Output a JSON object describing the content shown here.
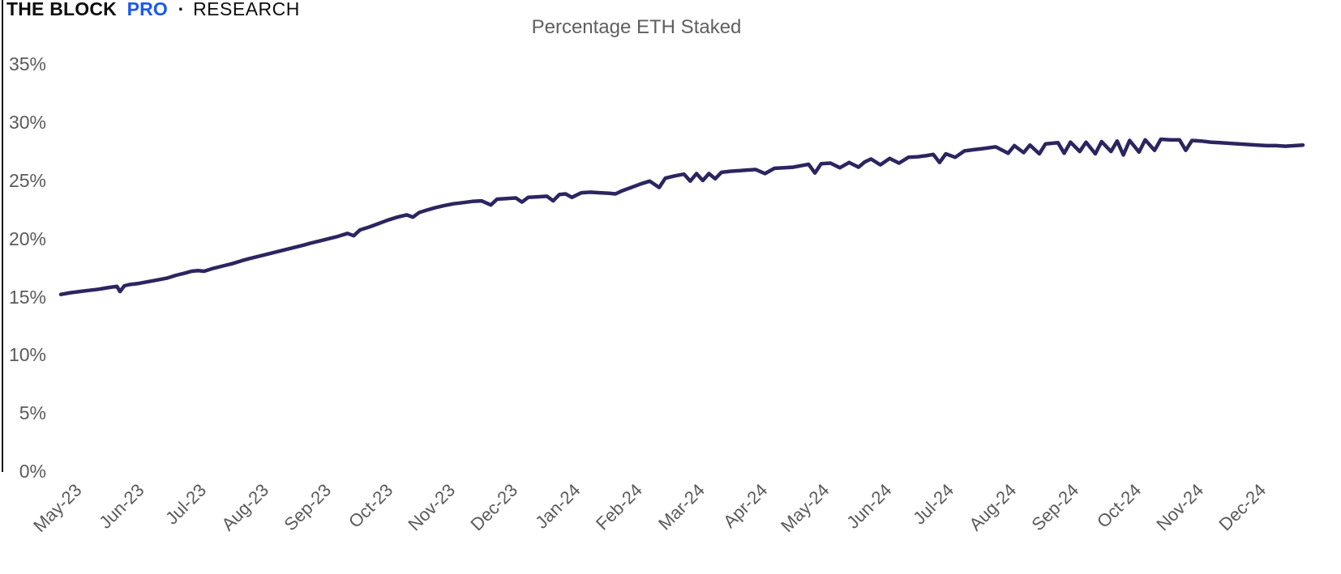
{
  "logo": {
    "part1": "THE BLOCK",
    "part2": "PRO",
    "separator": "·",
    "part3": "RESEARCH",
    "brand_blue": "#1b57f0"
  },
  "chart_data": {
    "type": "line",
    "title": "Percentage ETH Staked",
    "xlabel": "",
    "ylabel": "",
    "grid": false,
    "legend": "none",
    "line_color": "#2b2560",
    "axis_color": "#111111",
    "label_color": "#5a5a5a",
    "title_color": "#5f5f5f",
    "ylim": [
      0,
      40.5
    ],
    "y_ticks": [
      35,
      30,
      25,
      20,
      15,
      10,
      5,
      0
    ],
    "y_tick_labels": [
      "35%",
      "30%",
      "25%",
      "20%",
      "15%",
      "10%",
      "5%",
      "0%"
    ],
    "x_tick_labels": [
      "May-23",
      "Jun-23",
      "Jul-23",
      "Aug-23",
      "Sep-23",
      "Oct-23",
      "Nov-23",
      "Dec-23",
      "Jan-24",
      "Feb-24",
      "Mar-24",
      "Apr-24",
      "May-24",
      "Jun-24",
      "Jul-24",
      "Aug-24",
      "Sep-24",
      "Oct-24",
      "Nov-24",
      "Dec-24"
    ],
    "x_unit": "months since May-2023",
    "series": [
      {
        "name": "Percentage ETH Staked",
        "points": [
          [
            0.0,
            15.2
          ],
          [
            0.15,
            15.35
          ],
          [
            0.3,
            15.45
          ],
          [
            0.45,
            15.55
          ],
          [
            0.6,
            15.65
          ],
          [
            0.75,
            15.78
          ],
          [
            0.9,
            15.9
          ],
          [
            0.95,
            15.45
          ],
          [
            1.02,
            15.95
          ],
          [
            1.1,
            16.05
          ],
          [
            1.25,
            16.15
          ],
          [
            1.4,
            16.3
          ],
          [
            1.55,
            16.45
          ],
          [
            1.7,
            16.6
          ],
          [
            1.85,
            16.85
          ],
          [
            2.0,
            17.05
          ],
          [
            2.1,
            17.2
          ],
          [
            2.2,
            17.25
          ],
          [
            2.3,
            17.2
          ],
          [
            2.45,
            17.45
          ],
          [
            2.6,
            17.65
          ],
          [
            2.75,
            17.85
          ],
          [
            2.9,
            18.1
          ],
          [
            3.0,
            18.25
          ],
          [
            3.15,
            18.45
          ],
          [
            3.3,
            18.65
          ],
          [
            3.45,
            18.85
          ],
          [
            3.6,
            19.05
          ],
          [
            3.75,
            19.25
          ],
          [
            3.9,
            19.45
          ],
          [
            4.0,
            19.6
          ],
          [
            4.15,
            19.8
          ],
          [
            4.3,
            20.0
          ],
          [
            4.45,
            20.2
          ],
          [
            4.6,
            20.45
          ],
          [
            4.7,
            20.25
          ],
          [
            4.8,
            20.75
          ],
          [
            4.95,
            21.0
          ],
          [
            5.1,
            21.3
          ],
          [
            5.25,
            21.6
          ],
          [
            5.4,
            21.85
          ],
          [
            5.55,
            22.05
          ],
          [
            5.65,
            21.85
          ],
          [
            5.75,
            22.25
          ],
          [
            5.9,
            22.5
          ],
          [
            6.0,
            22.65
          ],
          [
            6.15,
            22.85
          ],
          [
            6.3,
            23.0
          ],
          [
            6.45,
            23.1
          ],
          [
            6.6,
            23.2
          ],
          [
            6.75,
            23.25
          ],
          [
            6.9,
            22.9
          ],
          [
            7.0,
            23.4
          ],
          [
            7.15,
            23.45
          ],
          [
            7.3,
            23.5
          ],
          [
            7.4,
            23.15
          ],
          [
            7.5,
            23.55
          ],
          [
            7.65,
            23.6
          ],
          [
            7.8,
            23.65
          ],
          [
            7.9,
            23.25
          ],
          [
            8.0,
            23.8
          ],
          [
            8.1,
            23.85
          ],
          [
            8.2,
            23.55
          ],
          [
            8.35,
            23.95
          ],
          [
            8.5,
            24.0
          ],
          [
            8.65,
            23.95
          ],
          [
            8.8,
            23.9
          ],
          [
            8.9,
            23.85
          ],
          [
            9.0,
            24.1
          ],
          [
            9.15,
            24.4
          ],
          [
            9.3,
            24.7
          ],
          [
            9.45,
            24.95
          ],
          [
            9.6,
            24.4
          ],
          [
            9.7,
            25.2
          ],
          [
            9.85,
            25.4
          ],
          [
            10.0,
            25.55
          ],
          [
            10.1,
            24.95
          ],
          [
            10.2,
            25.6
          ],
          [
            10.3,
            25.0
          ],
          [
            10.4,
            25.6
          ],
          [
            10.5,
            25.15
          ],
          [
            10.6,
            25.7
          ],
          [
            10.75,
            25.8
          ],
          [
            10.9,
            25.85
          ],
          [
            11.0,
            25.9
          ],
          [
            11.15,
            25.95
          ],
          [
            11.3,
            25.6
          ],
          [
            11.45,
            26.05
          ],
          [
            11.6,
            26.1
          ],
          [
            11.75,
            26.15
          ],
          [
            11.9,
            26.3
          ],
          [
            12.0,
            26.4
          ],
          [
            12.1,
            25.65
          ],
          [
            12.2,
            26.45
          ],
          [
            12.35,
            26.5
          ],
          [
            12.5,
            26.1
          ],
          [
            12.65,
            26.55
          ],
          [
            12.8,
            26.15
          ],
          [
            12.9,
            26.6
          ],
          [
            13.0,
            26.85
          ],
          [
            13.15,
            26.35
          ],
          [
            13.3,
            26.9
          ],
          [
            13.45,
            26.5
          ],
          [
            13.6,
            27.0
          ],
          [
            13.75,
            27.05
          ],
          [
            13.9,
            27.15
          ],
          [
            14.0,
            27.25
          ],
          [
            14.1,
            26.55
          ],
          [
            14.2,
            27.3
          ],
          [
            14.35,
            27.0
          ],
          [
            14.5,
            27.55
          ],
          [
            14.65,
            27.65
          ],
          [
            14.8,
            27.75
          ],
          [
            15.0,
            27.9
          ],
          [
            15.2,
            27.35
          ],
          [
            15.3,
            28.0
          ],
          [
            15.45,
            27.4
          ],
          [
            15.55,
            28.05
          ],
          [
            15.7,
            27.3
          ],
          [
            15.8,
            28.15
          ],
          [
            16.0,
            28.25
          ],
          [
            16.1,
            27.35
          ],
          [
            16.2,
            28.3
          ],
          [
            16.35,
            27.5
          ],
          [
            16.45,
            28.3
          ],
          [
            16.6,
            27.3
          ],
          [
            16.7,
            28.35
          ],
          [
            16.85,
            27.5
          ],
          [
            16.95,
            28.4
          ],
          [
            17.05,
            27.2
          ],
          [
            17.15,
            28.45
          ],
          [
            17.3,
            27.45
          ],
          [
            17.4,
            28.5
          ],
          [
            17.55,
            27.6
          ],
          [
            17.65,
            28.55
          ],
          [
            17.8,
            28.5
          ],
          [
            17.95,
            28.5
          ],
          [
            18.05,
            27.6
          ],
          [
            18.15,
            28.45
          ],
          [
            18.3,
            28.4
          ],
          [
            18.45,
            28.3
          ],
          [
            18.6,
            28.25
          ],
          [
            18.75,
            28.2
          ],
          [
            18.9,
            28.15
          ],
          [
            19.05,
            28.1
          ],
          [
            19.2,
            28.05
          ],
          [
            19.35,
            28.0
          ],
          [
            19.5,
            28.0
          ],
          [
            19.65,
            27.95
          ],
          [
            19.8,
            28.0
          ],
          [
            19.93,
            28.05
          ]
        ]
      }
    ]
  }
}
